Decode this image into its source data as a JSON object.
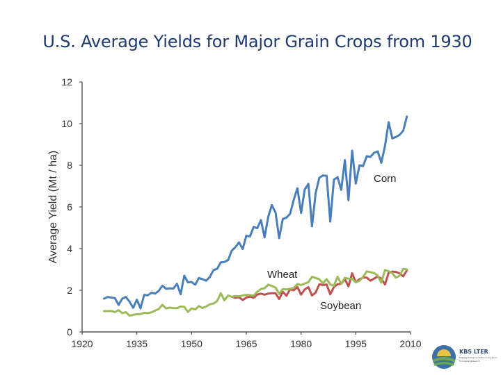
{
  "colors": {
    "corn": "#4a7ebb",
    "wheat": "#9bbb59",
    "soybean": "#c0504d",
    "title": "#1f3a6e",
    "axis": "#333333",
    "logo_green": "#6aa84f",
    "logo_yellow": "#e3c34a",
    "logo_blue": "#3d6fa8"
  },
  "logo": {
    "name": "KBS LTER",
    "subtitle": "Kellogg Biological Station Long-term Ecological Research"
  },
  "chart_data": {
    "type": "line",
    "title": "U.S. Average Yields for Major Grain Crops from 1930",
    "xlabel": "",
    "ylabel": "Average Yield (Mt / ha)",
    "xlim": [
      1920,
      2010
    ],
    "ylim": [
      0,
      12
    ],
    "xticks": [
      1920,
      1935,
      1950,
      1965,
      1980,
      1995,
      2010
    ],
    "yticks": [
      0,
      2,
      4,
      6,
      8,
      10,
      12
    ],
    "grid": false,
    "legend": "inline labels",
    "annotations": [
      {
        "text": "Corn",
        "series": "Corn"
      },
      {
        "text": "Wheat",
        "series": "Wheat"
      },
      {
        "text": "Soybean",
        "series": "Soybean"
      }
    ],
    "series": [
      {
        "name": "Corn",
        "x": [
          1926,
          1927,
          1928,
          1929,
          1930,
          1931,
          1932,
          1933,
          1934,
          1935,
          1936,
          1937,
          1938,
          1939,
          1940,
          1941,
          1942,
          1943,
          1944,
          1945,
          1946,
          1947,
          1948,
          1949,
          1950,
          1951,
          1952,
          1953,
          1954,
          1955,
          1956,
          1957,
          1958,
          1959,
          1960,
          1961,
          1962,
          1963,
          1964,
          1965,
          1966,
          1967,
          1968,
          1969,
          1970,
          1971,
          1972,
          1973,
          1974,
          1975,
          1976,
          1977,
          1978,
          1979,
          1980,
          1981,
          1982,
          1983,
          1984,
          1985,
          1986,
          1987,
          1988,
          1989,
          1990,
          1991,
          1992,
          1993,
          1994,
          1995,
          1996,
          1997,
          1998,
          1999,
          2000,
          2001,
          2002,
          2003,
          2004,
          2005,
          2006,
          2007,
          2008,
          2009
        ],
        "values": [
          1.6,
          1.68,
          1.65,
          1.62,
          1.3,
          1.6,
          1.68,
          1.45,
          1.16,
          1.55,
          1.13,
          1.78,
          1.76,
          1.88,
          1.84,
          1.97,
          2.22,
          2.07,
          2.09,
          2.08,
          2.31,
          1.81,
          2.7,
          2.38,
          2.4,
          2.27,
          2.59,
          2.53,
          2.46,
          2.64,
          2.97,
          3.03,
          3.34,
          3.36,
          3.45,
          3.9,
          4.07,
          4.3,
          3.98,
          4.62,
          4.58,
          5.04,
          4.98,
          5.37,
          4.54,
          5.53,
          6.09,
          5.73,
          4.5,
          5.42,
          5.49,
          5.67,
          6.35,
          6.9,
          5.71,
          6.84,
          7.11,
          5.07,
          6.66,
          7.4,
          7.51,
          7.5,
          5.3,
          7.31,
          7.43,
          6.82,
          8.25,
          6.32,
          8.7,
          7.12,
          8.0,
          7.96,
          8.44,
          8.4,
          8.6,
          8.67,
          8.12,
          8.93,
          10.07,
          9.29,
          9.36,
          9.46,
          9.66,
          10.34
        ]
      },
      {
        "name": "Wheat",
        "x": [
          1926,
          1927,
          1928,
          1929,
          1930,
          1931,
          1932,
          1933,
          1934,
          1935,
          1936,
          1937,
          1938,
          1939,
          1940,
          1941,
          1942,
          1943,
          1944,
          1945,
          1946,
          1947,
          1948,
          1949,
          1950,
          1951,
          1952,
          1953,
          1954,
          1955,
          1956,
          1957,
          1958,
          1959,
          1960,
          1961,
          1962,
          1963,
          1964,
          1965,
          1966,
          1967,
          1968,
          1969,
          1970,
          1971,
          1972,
          1973,
          1974,
          1975,
          1976,
          1977,
          1978,
          1979,
          1980,
          1981,
          1982,
          1983,
          1984,
          1985,
          1986,
          1987,
          1988,
          1989,
          1990,
          1991,
          1992,
          1993,
          1994,
          1995,
          1996,
          1997,
          1998,
          1999,
          2000,
          2001,
          2002,
          2003,
          2004,
          2005,
          2006,
          2007,
          2008,
          2009
        ],
        "values": [
          1.0,
          1.0,
          1.01,
          0.95,
          1.05,
          0.9,
          0.95,
          0.78,
          0.82,
          0.85,
          0.86,
          0.92,
          0.9,
          0.94,
          1.02,
          1.1,
          1.3,
          1.13,
          1.17,
          1.14,
          1.14,
          1.22,
          1.21,
          0.96,
          1.13,
          1.08,
          1.24,
          1.15,
          1.22,
          1.33,
          1.36,
          1.48,
          1.86,
          1.52,
          1.75,
          1.69,
          1.72,
          1.71,
          1.75,
          1.78,
          1.77,
          1.74,
          1.93,
          2.06,
          2.1,
          2.27,
          2.21,
          2.13,
          1.83,
          2.06,
          2.04,
          2.07,
          2.11,
          2.3,
          2.25,
          2.32,
          2.39,
          2.65,
          2.59,
          2.53,
          2.33,
          2.54,
          2.28,
          2.22,
          2.65,
          2.31,
          2.6,
          2.56,
          2.55,
          2.38,
          2.45,
          2.64,
          2.91,
          2.87,
          2.83,
          2.7,
          2.37,
          2.97,
          2.92,
          2.82,
          2.6,
          2.7,
          3.02,
          3.0
        ]
      },
      {
        "name": "Soybean",
        "x": [
          1961,
          1962,
          1963,
          1964,
          1965,
          1966,
          1967,
          1968,
          1969,
          1970,
          1971,
          1972,
          1973,
          1974,
          1975,
          1976,
          1977,
          1978,
          1979,
          1980,
          1981,
          1982,
          1983,
          1984,
          1985,
          1986,
          1987,
          1988,
          1989,
          1990,
          1991,
          1992,
          1993,
          1994,
          1995,
          1996,
          1997,
          1998,
          1999,
          2000,
          2001,
          2002,
          2003,
          2004,
          2005,
          2006,
          2007,
          2008,
          2009
        ],
        "values": [
          1.69,
          1.64,
          1.67,
          1.53,
          1.65,
          1.7,
          1.64,
          1.79,
          1.84,
          1.79,
          1.84,
          1.86,
          1.86,
          1.58,
          1.93,
          1.74,
          2.05,
          2.0,
          2.16,
          1.79,
          2.04,
          2.15,
          1.75,
          1.89,
          2.29,
          2.25,
          2.28,
          1.81,
          2.16,
          2.29,
          2.31,
          2.53,
          2.19,
          2.82,
          2.38,
          2.53,
          2.61,
          2.61,
          2.46,
          2.56,
          2.66,
          2.56,
          2.28,
          2.84,
          2.9,
          2.88,
          2.81,
          2.67,
          2.96
        ]
      }
    ]
  }
}
